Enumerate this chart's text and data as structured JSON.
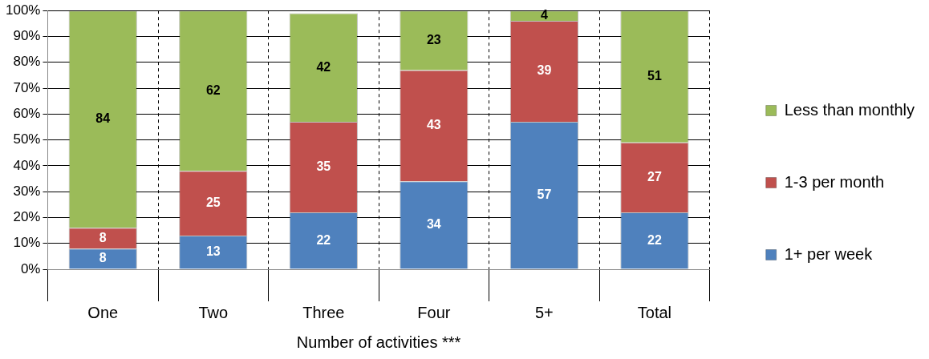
{
  "chart_data": {
    "type": "bar",
    "stacked": true,
    "xlabel": "Number of activities ***",
    "categories": [
      "One",
      "Two",
      "Three",
      "Four",
      "5+",
      "Total"
    ],
    "series": [
      {
        "name": "1+ per week",
        "color": "#4f81bd",
        "values": [
          8,
          13,
          22,
          34,
          57,
          22
        ]
      },
      {
        "name": "1-3 per month",
        "color": "#c0504d",
        "values": [
          8,
          25,
          35,
          43,
          39,
          27
        ]
      },
      {
        "name": "Less than monthly",
        "color": "#9bbb59",
        "values": [
          84,
          62,
          42,
          23,
          4,
          51
        ]
      }
    ],
    "ylim": [
      0,
      100
    ],
    "yticks": [
      {
        "value": 0,
        "label": "0%"
      },
      {
        "value": 10,
        "label": "10%"
      },
      {
        "value": 20,
        "label": "20%"
      },
      {
        "value": 30,
        "label": "30%"
      },
      {
        "value": 40,
        "label": "40%"
      },
      {
        "value": 50,
        "label": "50%"
      },
      {
        "value": 60,
        "label": "60%"
      },
      {
        "value": 70,
        "label": "70%"
      },
      {
        "value": 80,
        "label": "80%"
      },
      {
        "value": 90,
        "label": "90%"
      },
      {
        "value": 100,
        "label": "100%"
      }
    ],
    "grid": true,
    "legend": "right",
    "data_labels": true
  }
}
